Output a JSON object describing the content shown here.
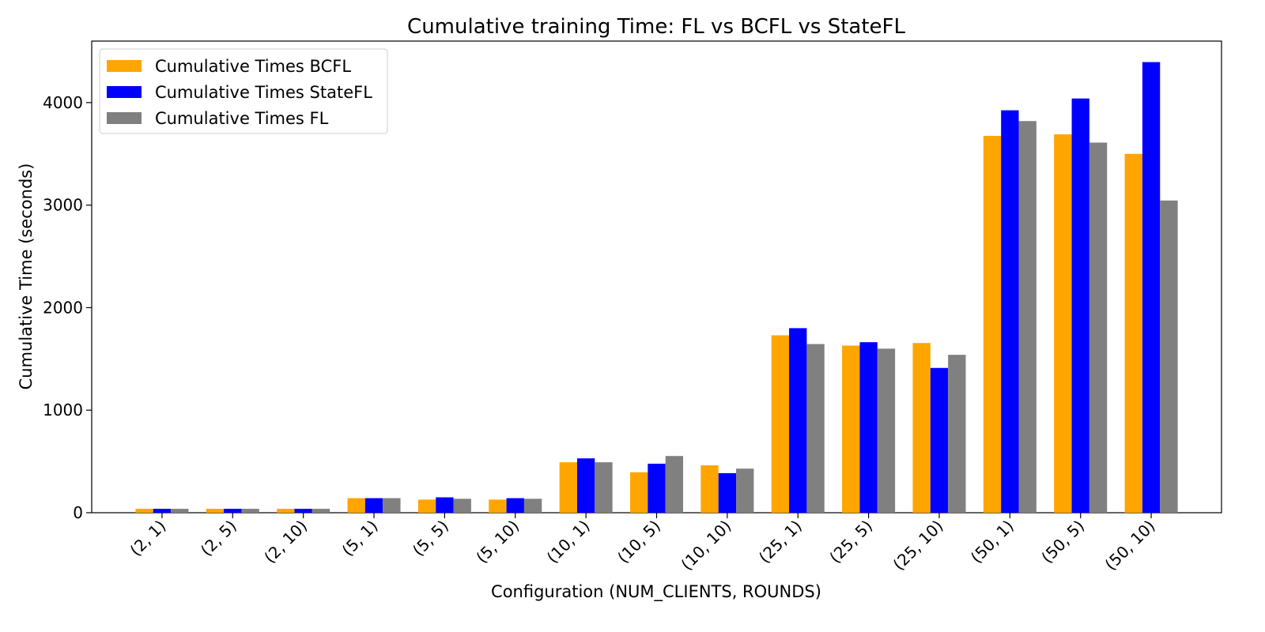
{
  "chart_data": {
    "type": "bar",
    "title": "Cumulative training Time: FL vs BCFL vs StateFL",
    "xlabel": "Configuration (NUM_CLIENTS, ROUNDS)",
    "ylabel": "Cumulative Time (seconds)",
    "ylim": [
      0,
      4600
    ],
    "yticks": [
      0,
      1000,
      2000,
      3000,
      4000
    ],
    "legend_position": "top-left",
    "grid": false,
    "categories": [
      "(2, 1)",
      "(2, 5)",
      "(2, 10)",
      "(5, 1)",
      "(5, 5)",
      "(5, 10)",
      "(10, 1)",
      "(10, 5)",
      "(10, 10)",
      "(25, 1)",
      "(25, 5)",
      "(25, 10)",
      "(50, 1)",
      "(50, 5)",
      "(50, 10)"
    ],
    "series": [
      {
        "name": "Cumulative Times BCFL",
        "color": "#FFA500",
        "values": [
          38,
          38,
          38,
          142,
          128,
          128,
          492,
          394,
          462,
          1730,
          1630,
          1655,
          3675,
          3690,
          3500
        ]
      },
      {
        "name": "Cumulative Times StateFL",
        "color": "#0000FF",
        "values": [
          38,
          38,
          38,
          142,
          150,
          142,
          530,
          478,
          386,
          1800,
          1663,
          1412,
          3925,
          4040,
          4395
        ]
      },
      {
        "name": "Cumulative Times FL",
        "color": "#808080",
        "values": [
          38,
          38,
          38,
          142,
          136,
          136,
          492,
          553,
          430,
          1645,
          1600,
          1540,
          3820,
          3610,
          3045
        ]
      }
    ]
  }
}
